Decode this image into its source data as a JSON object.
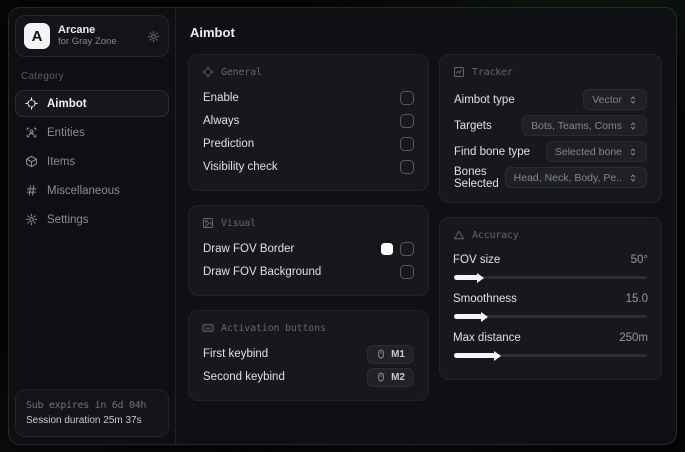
{
  "theme": {
    "accent_swatch": "#ffffff",
    "window_bg": "#0f1013",
    "card_bg": "#17181b"
  },
  "sidebar": {
    "brand": {
      "logo_letter": "A",
      "name": "Arcane",
      "subtitle": "for Gray Zone"
    },
    "category_label": "Category",
    "items": [
      {
        "label": "Aimbot",
        "icon": "crosshair-icon",
        "active": true
      },
      {
        "label": "Entities",
        "icon": "user-scan-icon",
        "active": false
      },
      {
        "label": "Items",
        "icon": "package-icon",
        "active": false
      },
      {
        "label": "Miscellaneous",
        "icon": "hash-icon",
        "active": false
      },
      {
        "label": "Settings",
        "icon": "gear-icon",
        "active": false
      }
    ],
    "footer": {
      "line1": "Sub expires in 6d 04h",
      "line2": "Session duration 25m 37s"
    }
  },
  "main": {
    "title": "Aimbot",
    "cards": {
      "general": {
        "title": "General",
        "rows": [
          "Enable",
          "Always",
          "Prediction",
          "Visibility check"
        ],
        "checked": [
          false,
          false,
          false,
          false
        ]
      },
      "visual": {
        "title": "Visual",
        "rows": [
          {
            "label": "Draw FOV Border",
            "swatch": "#ffffff",
            "checked": false
          },
          {
            "label": "Draw FOV Background",
            "checked": false
          }
        ]
      },
      "activation": {
        "title": "Activation buttons",
        "rows": [
          {
            "label": "First keybind",
            "key": "M1"
          },
          {
            "label": "Second keybind",
            "key": "M2"
          }
        ]
      },
      "tracker": {
        "title": "Tracker",
        "rows": [
          {
            "label": "Aimbot type",
            "value": "Vector"
          },
          {
            "label": "Targets",
            "value": "Bots, Teams, Coms"
          },
          {
            "label": "Find bone type",
            "value": "Selected bone"
          },
          {
            "label": "Bones Selected",
            "value": "Head, Neck, Body, Pe.."
          }
        ]
      },
      "accuracy": {
        "title": "Accuracy",
        "sliders": [
          {
            "label": "FOV size",
            "value": "50°",
            "percent": 13
          },
          {
            "label": "Smoothness",
            "value": "15.0",
            "percent": 15
          },
          {
            "label": "Max distance",
            "value": "250m",
            "percent": 22
          }
        ]
      }
    }
  }
}
